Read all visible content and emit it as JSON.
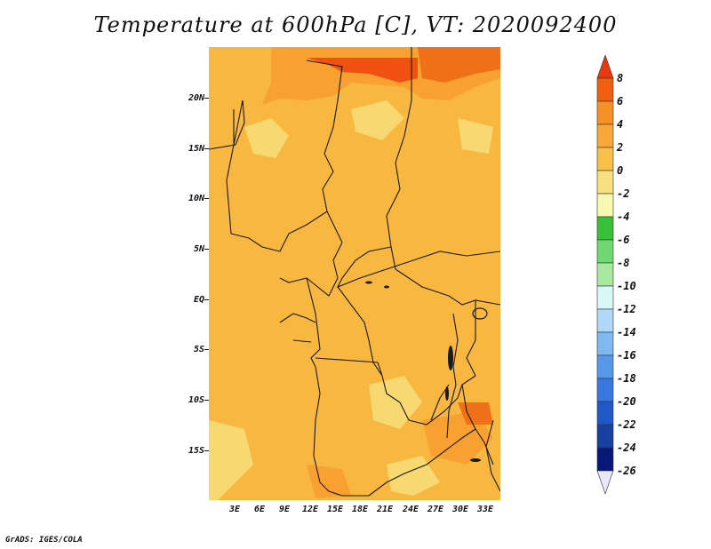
{
  "title": "Temperature at 600hPa [C], VT: 2020092400",
  "credit": "GrADS: IGES/COLA",
  "y_labels": [
    "20N",
    "15N",
    "10N",
    "5N",
    "EQ",
    "5S",
    "10S",
    "15S"
  ],
  "x_labels": [
    "3E",
    "6E",
    "9E",
    "12E",
    "15E",
    "18E",
    "21E",
    "24E",
    "27E",
    "30E",
    "33E"
  ],
  "colorbar": {
    "labels": [
      "8",
      "6",
      "4",
      "2",
      "0",
      "-2",
      "-4",
      "-6",
      "-8",
      "-10",
      "-12",
      "-14",
      "-16",
      "-18",
      "-20",
      "-22",
      "-24",
      "-26"
    ],
    "colors": [
      "#e83810",
      "#f06010",
      "#f89028",
      "#f8a838",
      "#f8c048",
      "#f8e080",
      "#f8f8b0",
      "#38c038",
      "#70d870",
      "#a8e8a0",
      "#d8f8f8",
      "#b0d8f8",
      "#80b8f0",
      "#5898e8",
      "#3878e0",
      "#2058c8",
      "#1840a0",
      "#081878",
      "#e8e8f8"
    ]
  },
  "map_colors": {
    "base": "#f8b840",
    "light": "#f8d870",
    "warm": "#f8a030",
    "hot": "#f07018",
    "hottest": "#f05010",
    "border": "#1a1a1a"
  }
}
